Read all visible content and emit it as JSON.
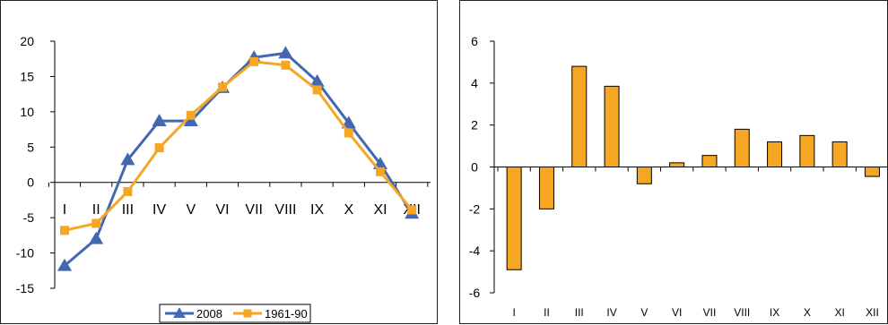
{
  "chart_data": [
    {
      "type": "line",
      "categories": [
        "I",
        "II",
        "III",
        "IV",
        "V",
        "VI",
        "VII",
        "VIII",
        "IX",
        "X",
        "XI",
        "XII"
      ],
      "series": [
        {
          "name": "2008",
          "color": "#4467b0",
          "marker": "triangle",
          "values": [
            -11.8,
            -8.0,
            3.2,
            8.7,
            8.7,
            13.4,
            17.7,
            18.3,
            14.3,
            8.4,
            2.6,
            -4.4
          ]
        },
        {
          "name": "1961-90",
          "color": "#f5a623",
          "marker": "square",
          "values": [
            -6.8,
            -5.8,
            -1.3,
            4.9,
            9.5,
            13.5,
            17.1,
            16.6,
            13.1,
            7.0,
            1.5,
            -3.9
          ]
        }
      ],
      "ylim": [
        -15,
        20
      ],
      "yticks": [
        "20",
        "15",
        "10",
        "5",
        "0",
        "-5",
        "-10",
        "-15"
      ],
      "xlabel": "",
      "ylabel": "",
      "title": "",
      "grid": false,
      "legend_position": "bottom-center"
    },
    {
      "type": "bar",
      "categories": [
        "I",
        "II",
        "III",
        "IV",
        "V",
        "VI",
        "VII",
        "VIII",
        "IX",
        "X",
        "XI",
        "XII"
      ],
      "values": [
        -4.9,
        -2.0,
        4.8,
        3.85,
        -0.8,
        0.2,
        0.55,
        1.8,
        1.2,
        1.5,
        1.2,
        -0.45
      ],
      "color": "#f5a623",
      "ylim": [
        -6,
        6
      ],
      "yticks": [
        "6",
        "4",
        "2",
        "0",
        "-2",
        "-4",
        "-6"
      ],
      "xlabel": "",
      "ylabel": "",
      "title": "",
      "grid": false
    }
  ]
}
